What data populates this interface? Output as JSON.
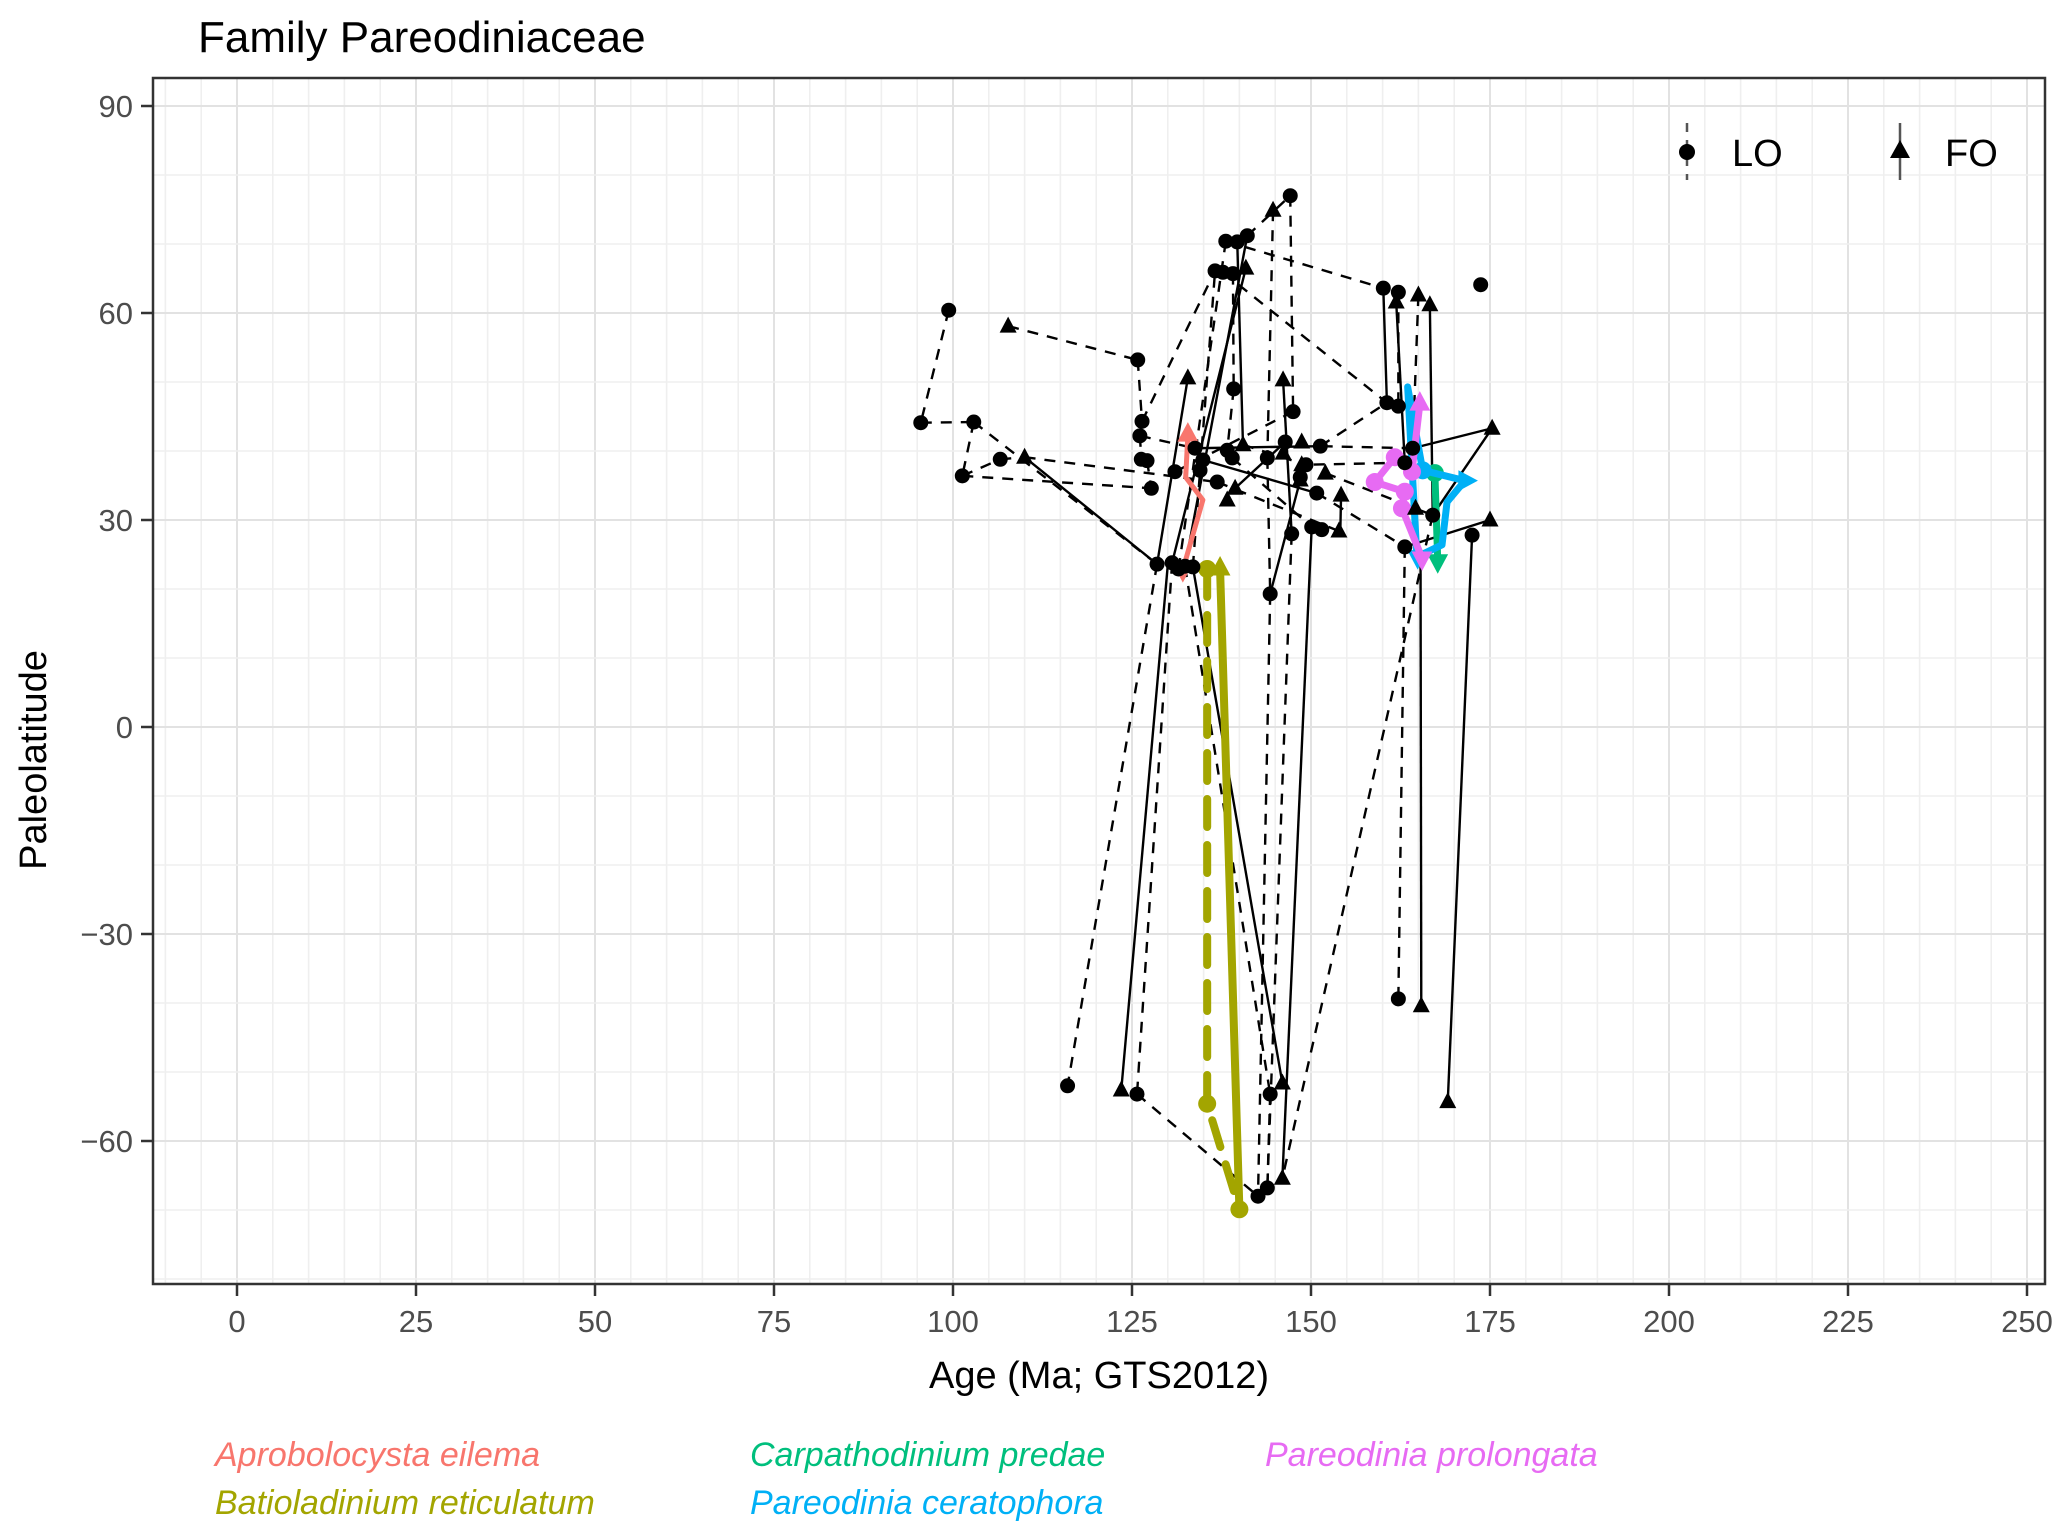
{
  "chart_data": {
    "type": "scatter",
    "title": "Family Pareodiniaceae",
    "xlabel": "Age (Ma; GTS2012)",
    "ylabel": "Paleolatitude",
    "x_ticks": [
      {
        "v": 0,
        "l": "0"
      },
      {
        "v": 25,
        "l": "25"
      },
      {
        "v": 50,
        "l": "50"
      },
      {
        "v": 75,
        "l": "75"
      },
      {
        "v": 100,
        "l": "100"
      },
      {
        "v": 125,
        "l": "125"
      },
      {
        "v": 150,
        "l": "150"
      },
      {
        "v": 175,
        "l": "175"
      },
      {
        "v": 200,
        "l": "200"
      },
      {
        "v": 225,
        "l": "225"
      },
      {
        "v": 250,
        "l": "250"
      }
    ],
    "y_ticks": [
      {
        "v": 90,
        "l": "90"
      },
      {
        "v": 60,
        "l": "60"
      },
      {
        "v": 30,
        "l": "30"
      },
      {
        "v": 0,
        "l": "0"
      },
      {
        "v": -30,
        "l": "−30"
      },
      {
        "v": -60,
        "l": "−60"
      }
    ],
    "xlim": [
      -11.7,
      252.5
    ],
    "ylim": [
      -80.7,
      94.1
    ],
    "grid": {
      "x_minor_step": 5,
      "y_minor_step": 10,
      "x_major_step": 25,
      "y_major_step": 30,
      "on": true
    },
    "legend_position": "top-right-inside",
    "marker_legend": [
      {
        "label": "LO",
        "marker": "circle-on-dashed-line"
      },
      {
        "label": "FO",
        "marker": "triangle-on-solid-line"
      }
    ],
    "lo_points": [
      [
        99.4,
        60.4
      ],
      [
        125.8,
        53.2
      ],
      [
        95.5,
        44.1
      ],
      [
        102.9,
        44.2
      ],
      [
        106.6,
        38.8
      ],
      [
        101.3,
        36.4
      ],
      [
        126.4,
        44.3
      ],
      [
        126.1,
        42.2
      ],
      [
        126.3,
        38.8
      ],
      [
        127.1,
        38.6
      ],
      [
        127.7,
        34.6
      ],
      [
        131.0,
        37.0
      ],
      [
        138.1,
        70.4
      ],
      [
        139.7,
        70.3
      ],
      [
        141.1,
        71.2
      ],
      [
        136.6,
        66.1
      ],
      [
        137.7,
        65.9
      ],
      [
        139.1,
        65.7
      ],
      [
        147.1,
        77.0
      ],
      [
        139.2,
        49.0
      ],
      [
        133.8,
        40.4
      ],
      [
        138.3,
        40.1
      ],
      [
        134.9,
        38.7
      ],
      [
        139.0,
        39.0
      ],
      [
        136.9,
        35.5
      ],
      [
        134.5,
        37.2
      ],
      [
        143.9,
        39.0
      ],
      [
        146.4,
        41.3
      ],
      [
        147.5,
        45.7
      ],
      [
        151.3,
        40.7
      ],
      [
        149.3,
        38.0
      ],
      [
        148.5,
        36.2
      ],
      [
        150.8,
        33.9
      ],
      [
        147.3,
        28.0
      ],
      [
        150.1,
        29.0
      ],
      [
        151.5,
        28.6
      ],
      [
        144.3,
        19.3
      ],
      [
        128.5,
        23.6
      ],
      [
        130.6,
        23.8
      ],
      [
        131.5,
        22.9
      ],
      [
        132.4,
        23.3
      ],
      [
        133.5,
        23.2
      ],
      [
        160.1,
        63.6
      ],
      [
        162.2,
        63.0
      ],
      [
        173.7,
        64.1
      ],
      [
        160.6,
        47.0
      ],
      [
        162.2,
        46.5
      ],
      [
        164.2,
        40.4
      ],
      [
        163.1,
        38.3
      ],
      [
        167.0,
        30.7
      ],
      [
        163.1,
        26.1
      ],
      [
        172.5,
        27.8
      ],
      [
        116.0,
        -52.0
      ],
      [
        125.7,
        -53.2
      ],
      [
        144.3,
        -53.2
      ],
      [
        162.2,
        -39.4
      ],
      [
        142.6,
        -68.0
      ],
      [
        143.9,
        -66.8
      ]
    ],
    "fo_points": [
      [
        107.7,
        58.1
      ],
      [
        110.0,
        39.1
      ],
      [
        144.7,
        74.9
      ],
      [
        165.0,
        62.6
      ],
      [
        140.5,
        40.9
      ],
      [
        146.1,
        39.7
      ],
      [
        148.7,
        41.3
      ],
      [
        152.0,
        36.8
      ],
      [
        154.2,
        33.6
      ],
      [
        138.3,
        32.9
      ],
      [
        153.9,
        28.4
      ],
      [
        139.4,
        34.6
      ],
      [
        148.7,
        38.0
      ],
      [
        148.5,
        35.8
      ],
      [
        164.6,
        31.7
      ],
      [
        175.3,
        43.3
      ],
      [
        175.0,
        30.0
      ],
      [
        132.8,
        50.6
      ],
      [
        146.1,
        50.3
      ],
      [
        140.9,
        66.5
      ],
      [
        161.9,
        61.6
      ],
      [
        166.6,
        61.2
      ],
      [
        123.5,
        -52.6
      ],
      [
        146.0,
        -51.6
      ],
      [
        146.0,
        -65.4
      ],
      [
        165.4,
        -40.4
      ],
      [
        169.1,
        -54.3
      ]
    ],
    "segments": [
      [
        99.4,
        60.4,
        95.5,
        44.1,
        "d"
      ],
      [
        95.5,
        44.1,
        102.9,
        44.2,
        "d"
      ],
      [
        102.9,
        44.2,
        101.3,
        36.4,
        "d"
      ],
      [
        101.3,
        36.4,
        106.6,
        38.8,
        "d"
      ],
      [
        106.6,
        38.8,
        110.0,
        39.1,
        "d"
      ],
      [
        107.7,
        58.1,
        125.8,
        53.2,
        "d"
      ],
      [
        125.8,
        53.2,
        126.4,
        44.3,
        "d"
      ],
      [
        126.4,
        44.3,
        126.1,
        42.2,
        "d"
      ],
      [
        126.1,
        42.2,
        126.3,
        38.8,
        "d"
      ],
      [
        127.1,
        38.6,
        127.7,
        34.6,
        "d"
      ],
      [
        126.4,
        44.3,
        136.6,
        66.1,
        "d"
      ],
      [
        137.7,
        65.9,
        160.6,
        47.0,
        "d"
      ],
      [
        128.5,
        23.6,
        132.8,
        50.6,
        "s"
      ],
      [
        130.6,
        23.8,
        140.9,
        66.5,
        "s"
      ],
      [
        132.4,
        23.3,
        141.1,
        71.2,
        "s"
      ],
      [
        133.5,
        23.2,
        136.6,
        66.1,
        "d"
      ],
      [
        131.5,
        22.9,
        138.1,
        70.4,
        "d"
      ],
      [
        147.1,
        77.0,
        147.5,
        45.7,
        "d"
      ],
      [
        144.7,
        74.9,
        143.9,
        39.0,
        "d"
      ],
      [
        139.7,
        70.3,
        140.5,
        40.9,
        "s"
      ],
      [
        139.1,
        65.7,
        139.2,
        49.0,
        "d"
      ],
      [
        139.2,
        49.0,
        138.3,
        40.1,
        "d"
      ],
      [
        138.1,
        70.4,
        160.1,
        63.6,
        "d"
      ],
      [
        147.3,
        28.0,
        146.1,
        50.3,
        "s"
      ],
      [
        133.8,
        40.4,
        151.3,
        40.7,
        "s"
      ],
      [
        134.9,
        38.7,
        150.8,
        33.9,
        "s"
      ],
      [
        136.9,
        35.5,
        153.9,
        28.4,
        "d"
      ],
      [
        139.0,
        39.0,
        150.1,
        29.0,
        "d"
      ],
      [
        140.5,
        40.9,
        149.3,
        38.0,
        "d"
      ],
      [
        146.4,
        41.3,
        139.4,
        34.6,
        "s"
      ],
      [
        143.9,
        39.0,
        144.3,
        19.3,
        "d"
      ],
      [
        147.5,
        45.7,
        131.0,
        37.0,
        "d"
      ],
      [
        151.3,
        40.7,
        160.6,
        47.0,
        "d"
      ],
      [
        150.8,
        33.9,
        163.1,
        26.1,
        "d"
      ],
      [
        152.0,
        36.8,
        167.0,
        30.7,
        "d"
      ],
      [
        154.1,
        28.6,
        154.2,
        33.6,
        "s"
      ],
      [
        150.1,
        29.0,
        146.0,
        -65.4,
        "s"
      ],
      [
        144.3,
        19.3,
        142.6,
        -68.0,
        "d"
      ],
      [
        147.3,
        28.0,
        143.9,
        -66.8,
        "d"
      ],
      [
        128.5,
        23.6,
        116.0,
        -52.0,
        "d"
      ],
      [
        130.0,
        23.5,
        123.5,
        -52.6,
        "s"
      ],
      [
        130.6,
        23.8,
        125.7,
        -53.2,
        "d"
      ],
      [
        133.5,
        23.2,
        146.0,
        -51.6,
        "s"
      ],
      [
        132.4,
        23.3,
        144.3,
        -53.2,
        "d"
      ],
      [
        163.1,
        26.1,
        162.2,
        -39.4,
        "d"
      ],
      [
        165.3,
        24.0,
        165.4,
        -40.4,
        "s"
      ],
      [
        172.5,
        27.8,
        169.1,
        -54.3,
        "s"
      ],
      [
        167.0,
        30.7,
        146.0,
        -65.4,
        "d"
      ],
      [
        163.1,
        38.3,
        148.7,
        38.0,
        "d"
      ],
      [
        164.2,
        40.4,
        151.3,
        40.7,
        "d"
      ],
      [
        164.2,
        40.4,
        175.3,
        43.3,
        "s"
      ],
      [
        175.3,
        43.3,
        167.0,
        30.7,
        "s"
      ],
      [
        167.0,
        30.7,
        166.6,
        61.2,
        "s"
      ],
      [
        163.1,
        38.3,
        161.9,
        61.6,
        "s"
      ],
      [
        160.1,
        63.6,
        160.6,
        47.0,
        "s"
      ],
      [
        162.2,
        63.0,
        162.2,
        46.5,
        "d"
      ],
      [
        165.0,
        62.6,
        164.2,
        40.4,
        "d"
      ],
      [
        144.3,
        19.3,
        148.5,
        35.8,
        "s"
      ],
      [
        102.9,
        44.2,
        128.5,
        23.6,
        "d"
      ],
      [
        101.3,
        36.4,
        127.7,
        34.6,
        "d"
      ],
      [
        110.0,
        39.1,
        136.9,
        35.5,
        "d"
      ],
      [
        110.0,
        39.1,
        128.5,
        23.6,
        "s"
      ],
      [
        126.1,
        42.2,
        133.8,
        40.4,
        "d"
      ],
      [
        125.7,
        -53.2,
        142.6,
        -68.0,
        "d"
      ],
      [
        144.3,
        -53.2,
        143.9,
        -66.8,
        "d"
      ],
      [
        163.1,
        26.1,
        175.0,
        30.0,
        "s"
      ],
      [
        141.1,
        71.2,
        147.1,
        77.0,
        "d"
      ]
    ],
    "species": [
      {
        "name": "Aprobolocysta eilema",
        "color": "#F8766D",
        "legend_row": 0,
        "legend_col": 0,
        "lines": [
          {
            "style": "solid",
            "width": 5,
            "pts": [
              [
                132.1,
                22.8
              ],
              [
                134.9,
                32.9
              ],
              [
                132.5,
                36.2
              ],
              [
                132.8,
                42.3
              ]
            ],
            "dots": [],
            "arrows": [
              {
                "x": 132.8,
                "y": 42.3,
                "dir": "up"
              },
              {
                "x": 132.1,
                "y": 22.8,
                "dir": "down"
              }
            ]
          }
        ]
      },
      {
        "name": "Batioladinium reticulatum",
        "color": "#A3A500",
        "legend_row": 1,
        "legend_col": 0,
        "lines": [
          {
            "style": "dashed",
            "width": 8,
            "pts": [
              [
                135.5,
                22.9
              ],
              [
                135.5,
                -54.6
              ],
              [
                140.0,
                -69.9
              ]
            ],
            "dots": [
              [
                135.5,
                22.9
              ],
              [
                135.5,
                -54.6
              ],
              [
                140.0,
                -69.9
              ]
            ],
            "arrows": []
          },
          {
            "style": "solid",
            "width": 8,
            "pts": [
              [
                137.3,
                22.9
              ],
              [
                140.0,
                -69.9
              ]
            ],
            "dots": [],
            "arrows": [
              {
                "x": 137.3,
                "y": 22.9,
                "dir": "up"
              }
            ]
          }
        ]
      },
      {
        "name": "Carpathodinium predae",
        "color": "#00BF7D",
        "legend_row": 0,
        "legend_col": 1,
        "lines": [
          {
            "style": "solid",
            "width": 7,
            "pts": [
              [
                167.3,
                36.8
              ],
              [
                167.7,
                24.1
              ]
            ],
            "dots": [
              [
                167.3,
                36.8
              ]
            ],
            "arrows": [
              {
                "x": 167.7,
                "y": 24.1,
                "dir": "down"
              }
            ]
          }
        ]
      },
      {
        "name": "Pareodinia ceratophora",
        "color": "#00B0F6",
        "legend_row": 1,
        "legend_col": 1,
        "lines": [
          {
            "style": "solid",
            "width": 7,
            "pts": [
              [
                164.8,
                24.5
              ],
              [
                163.5,
                49.3
              ],
              [
                165.6,
                37.2
              ],
              [
                171.5,
                35.7
              ],
              [
                169.0,
                32.6
              ],
              [
                168.3,
                26.4
              ],
              [
                164.9,
                24.7
              ]
            ],
            "dots": [
              [
                165.6,
                37.2
              ]
            ],
            "arrows": [
              {
                "x": 171.5,
                "y": 35.7,
                "dir": "right"
              },
              {
                "x": 164.9,
                "y": 24.7,
                "dir": "down"
              }
            ]
          }
        ]
      },
      {
        "name": "Pareodinia prolongata",
        "color": "#E76BF3",
        "legend_row": 0,
        "legend_col": 2,
        "lines": [
          {
            "style": "solid",
            "width": 7,
            "pts": [
              [
                165.2,
                46.8
              ],
              [
                164.1,
                37.0
              ],
              [
                161.7,
                39.1
              ],
              [
                158.9,
                35.5
              ],
              [
                163.1,
                34.1
              ],
              [
                162.7,
                31.7
              ],
              [
                165.5,
                24.5
              ]
            ],
            "dots": [
              [
                164.1,
                37.0
              ],
              [
                161.7,
                39.1
              ],
              [
                158.9,
                35.5
              ],
              [
                163.1,
                34.1
              ],
              [
                162.7,
                31.7
              ]
            ],
            "arrows": [
              {
                "x": 165.2,
                "y": 46.8,
                "dir": "up"
              },
              {
                "x": 165.5,
                "y": 24.5,
                "dir": "down"
              }
            ]
          }
        ]
      }
    ]
  }
}
